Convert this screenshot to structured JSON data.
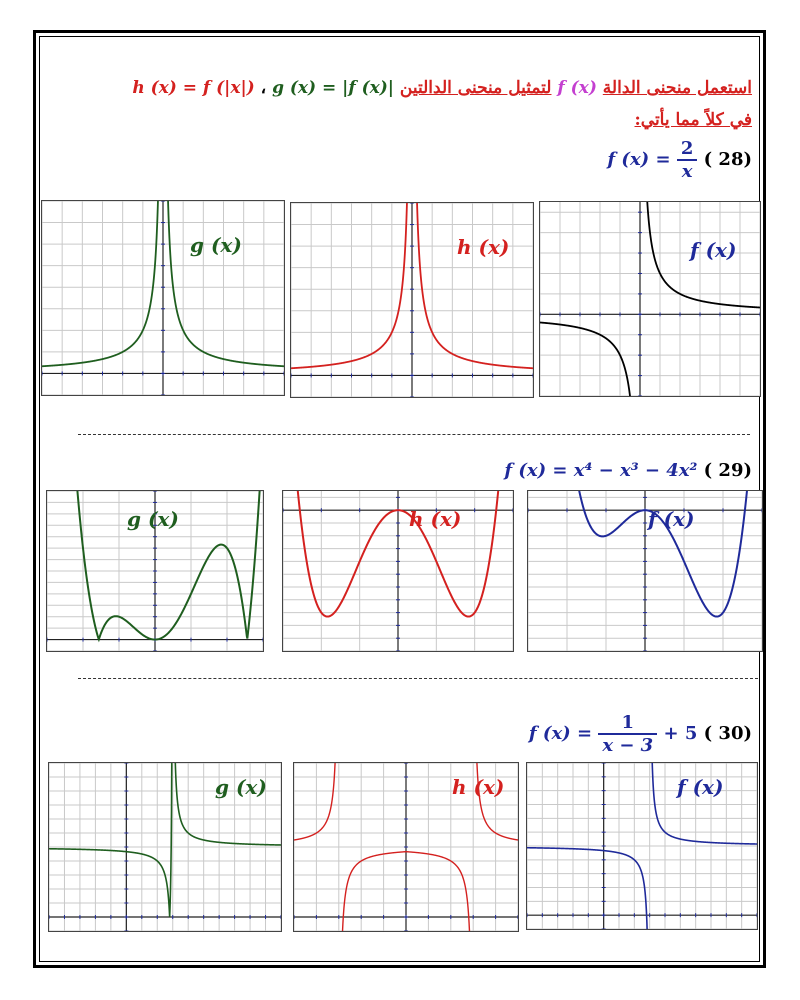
{
  "instructions": {
    "line1_prefix": "استعمل منحنى الدالة",
    "line1_f": "f (x)",
    "line1_middle": "لتمثيل منحنى الدالتين",
    "line1_h": "h (x) = f (|x|)",
    "line1_sep": "،",
    "line1_g": "g (x) = |f (x)|",
    "line2": "في كلاً مما يأتي:"
  },
  "problems": [
    {
      "number": "( 28)",
      "equation_lhs": "f (x) =",
      "frac_num": "2",
      "frac_den": "x",
      "graphs": [
        {
          "label": "g (x)",
          "color": "#1f5e1f"
        },
        {
          "label": "h (x)",
          "color": "#d4211f"
        },
        {
          "label": "f (x)",
          "color": "#1f2a9a",
          "curve_color": "#000000"
        }
      ]
    },
    {
      "number": "( 29)",
      "equation": "f (x) = x⁴ − x³ − 4x²",
      "graphs": [
        {
          "label": "g (x)",
          "color": "#1f5e1f"
        },
        {
          "label": "h (x)",
          "color": "#d4211f"
        },
        {
          "label": "f (x)",
          "color": "#1f2a9a"
        }
      ]
    },
    {
      "number": "( 30)",
      "equation_lhs": "f (x) =",
      "frac_num": "1",
      "frac_den": "x − 3",
      "equation_rhs": "+ 5",
      "graphs": [
        {
          "label": "g (x)",
          "color": "#1f5e1f"
        },
        {
          "label": "h (x)",
          "color": "#d4211f"
        },
        {
          "label": "f (x)",
          "color": "#1f2a9a"
        }
      ]
    }
  ]
}
